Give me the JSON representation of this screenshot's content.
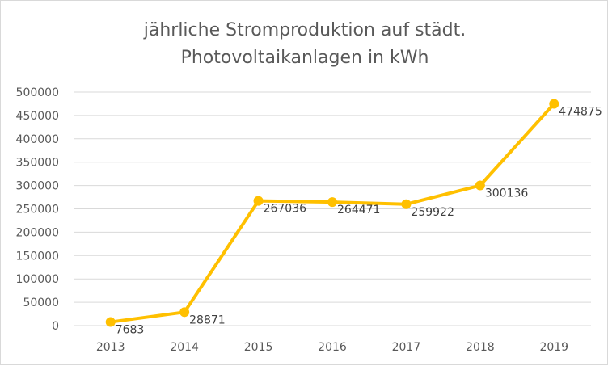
{
  "chart_data": {
    "type": "line",
    "title": "jährliche Stromproduktion auf städt. Photovoltaikanlagen in kWh",
    "title_lines": [
      "jährliche Stromproduktion auf städt.",
      "Photovoltaikanlagen in kWh"
    ],
    "xlabel": "",
    "ylabel": "",
    "categories": [
      "2013",
      "2014",
      "2015",
      "2016",
      "2017",
      "2018",
      "2019"
    ],
    "series": [
      {
        "values": [
          7683,
          28871,
          267036,
          264471,
          259922,
          300136,
          474875
        ]
      }
    ],
    "ylim": [
      0,
      500000
    ],
    "yticks": [
      "0",
      "50000",
      "100000",
      "150000",
      "200000",
      "250000",
      "300000",
      "350000",
      "400000",
      "450000",
      "500000"
    ],
    "data_labels": [
      "7683",
      "28871",
      "267036",
      "264471",
      "259922",
      "300136",
      "474875"
    ],
    "grid": true,
    "legend": "none",
    "colors": {
      "line": "#FFC000",
      "grid": "#d9d9d9",
      "text": "#595959"
    }
  }
}
